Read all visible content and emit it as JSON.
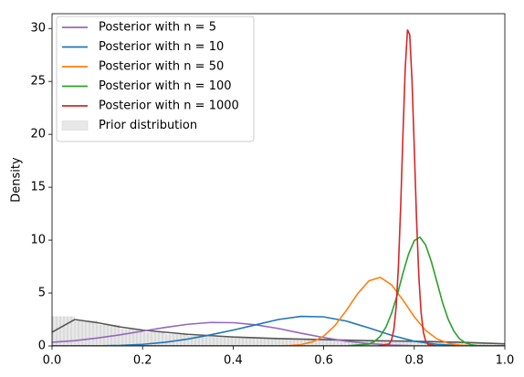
{
  "chart_data": {
    "type": "line",
    "ylabel": "Density",
    "xlim": [
      0,
      1
    ],
    "ylim": [
      0,
      31.4
    ],
    "xticks": [
      {
        "value": 0,
        "label": "0.0"
      },
      0.2,
      0.4,
      0.6,
      0.8,
      {
        "value": 1,
        "label": "1.0"
      }
    ],
    "yticks": [
      0,
      5,
      10,
      15,
      20,
      25,
      30
    ],
    "legend": "upper left",
    "series": [
      {
        "name": "Posterior with n = 5",
        "color": "#9467bd",
        "x": [
          0,
          0.05,
          0.1,
          0.15,
          0.2,
          0.25,
          0.3,
          0.35,
          0.4,
          0.45,
          0.5,
          0.55,
          0.6,
          0.65,
          0.7,
          0.75,
          0.8,
          0.85,
          0.9,
          0.95,
          1
        ],
        "values": [
          0.35,
          0.5,
          0.75,
          1.05,
          1.4,
          1.75,
          2.05,
          2.22,
          2.2,
          2.0,
          1.65,
          1.2,
          0.8,
          0.45,
          0.22,
          0.08,
          0.02,
          0,
          0,
          0,
          0
        ]
      },
      {
        "name": "Posterior with n = 10",
        "color": "#1f77b4",
        "x": [
          0,
          0.05,
          0.1,
          0.15,
          0.2,
          0.25,
          0.3,
          0.35,
          0.4,
          0.45,
          0.5,
          0.55,
          0.6,
          0.65,
          0.7,
          0.75,
          0.8,
          0.85,
          0.9,
          0.95,
          1
        ],
        "values": [
          0,
          0,
          0.01,
          0.05,
          0.15,
          0.35,
          0.65,
          1.05,
          1.5,
          2.0,
          2.5,
          2.8,
          2.75,
          2.35,
          1.7,
          1.0,
          0.45,
          0.15,
          0.03,
          0,
          0
        ]
      },
      {
        "name": "Posterior with n = 50",
        "color": "#ff7f0e",
        "x": [
          0,
          0.5,
          0.525,
          0.55,
          0.575,
          0.6,
          0.625,
          0.65,
          0.675,
          0.7,
          0.725,
          0.75,
          0.775,
          0.8,
          0.825,
          0.85,
          0.875,
          0.9,
          0.925,
          0.95,
          1
        ],
        "values": [
          0,
          0.01,
          0.04,
          0.13,
          0.38,
          0.93,
          1.93,
          3.36,
          4.94,
          6.16,
          6.48,
          5.77,
          4.34,
          2.76,
          1.48,
          0.67,
          0.26,
          0.08,
          0.02,
          0,
          0
        ]
      },
      {
        "name": "Posterior with n = 100",
        "color": "#2ca02c",
        "x": [
          0,
          0.65,
          0.7,
          0.7125,
          0.725,
          0.7375,
          0.75,
          0.7625,
          0.775,
          0.7875,
          0.8,
          0.8125,
          0.825,
          0.8375,
          0.85,
          0.8625,
          0.875,
          0.8875,
          0.9,
          0.9125,
          0.925,
          0.9375,
          1
        ],
        "values": [
          0,
          0,
          0.18,
          0.43,
          0.92,
          1.79,
          3.1,
          4.84,
          6.87,
          8.7,
          9.96,
          10.28,
          9.55,
          8.0,
          6.06,
          4.09,
          2.51,
          1.39,
          0.68,
          0.31,
          0.12,
          0.04,
          0
        ]
      },
      {
        "name": "Posterior with n = 1000",
        "color": "#d62728",
        "x": [
          0,
          0.72,
          0.745,
          0.75,
          0.755,
          0.76,
          0.765,
          0.77,
          0.775,
          0.78,
          0.785,
          0.79,
          0.795,
          0.8,
          0.805,
          0.81,
          0.815,
          0.82,
          0.825,
          0.83,
          0.85,
          1
        ],
        "values": [
          0,
          0,
          0.19,
          0.6,
          1.6,
          3.7,
          7.5,
          13.2,
          19.96,
          26.2,
          29.9,
          29.4,
          25.1,
          18.7,
          12.0,
          6.65,
          3.2,
          1.33,
          0.48,
          0.15,
          0,
          0
        ]
      },
      {
        "color": "#555555",
        "x": [
          0,
          0.05,
          0.1,
          0.15,
          0.2,
          0.3,
          0.4,
          0.5,
          0.6,
          0.7,
          0.8,
          0.9,
          1
        ],
        "values": [
          1.3,
          2.5,
          2.2,
          1.8,
          1.5,
          1.1,
          0.85,
          0.7,
          0.6,
          0.5,
          0.45,
          0.35,
          0.2
        ]
      }
    ],
    "prior": {
      "name": "Prior distribution",
      "color": "#e8e8e8",
      "bins": [
        0,
        0.05,
        0.1,
        0.15,
        0.2,
        0.25,
        0.3,
        0.35,
        0.4,
        0.45,
        0.5,
        0.55,
        0.6,
        0.65,
        0.7,
        0.75,
        0.8,
        0.85,
        0.9,
        0.95,
        1
      ],
      "counts": [
        2.8,
        2.4,
        2.0,
        1.6,
        1.3,
        1.1,
        0.95,
        0.85,
        0.75,
        0.7,
        0.65,
        0.6,
        0.55,
        0.5,
        0.5,
        0.45,
        0.4,
        0.35,
        0.3,
        0.25
      ]
    }
  }
}
